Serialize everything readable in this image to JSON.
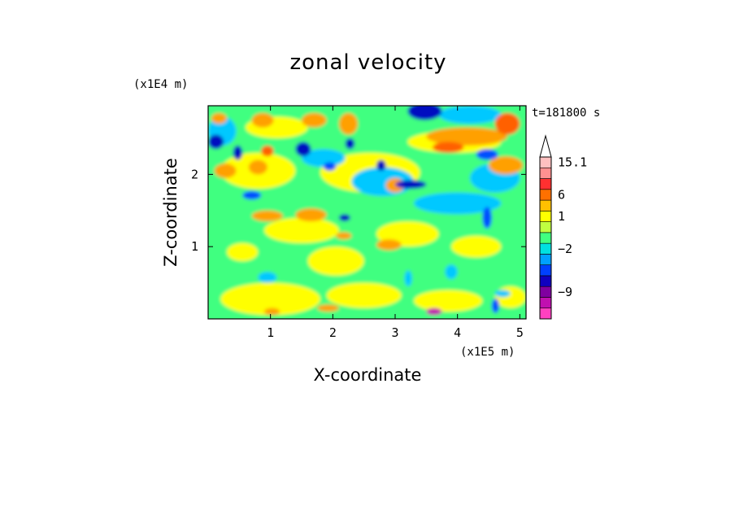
{
  "chart_data": {
    "type": "heatmap",
    "title": "zonal velocity",
    "xlabel": "X-coordinate",
    "ylabel": "Z-coordinate",
    "x_scale_label": "(x1E5 m)",
    "y_scale_label": "(x1E4 m)",
    "time_label": "t=181800 s",
    "xlim": [
      0,
      5.1
    ],
    "ylim": [
      0,
      2.95
    ],
    "x_ticks": [
      {
        "value": 1,
        "label": "1"
      },
      {
        "value": 2,
        "label": "2"
      },
      {
        "value": 3,
        "label": "3"
      },
      {
        "value": 4,
        "label": "4"
      },
      {
        "value": 5,
        "label": "5"
      }
    ],
    "y_ticks": [
      {
        "value": 1,
        "label": "1"
      },
      {
        "value": 2,
        "label": "2"
      }
    ],
    "colorbar": {
      "levels": [
        {
          "color": "#ff40c0"
        },
        {
          "color": "#c010b0"
        },
        {
          "color": "#8000a0"
        },
        {
          "color": "#1000c0"
        },
        {
          "color": "#0040ff"
        },
        {
          "color": "#00a0ff"
        },
        {
          "color": "#00e0e0"
        },
        {
          "color": "#40ff80"
        },
        {
          "color": "#c0ff40"
        },
        {
          "color": "#ffff00"
        },
        {
          "color": "#ffc000"
        },
        {
          "color": "#ff7000"
        },
        {
          "color": "#ff3030"
        },
        {
          "color": "#ff9090"
        },
        {
          "color": "#ffc0c0"
        }
      ],
      "extend_top": true,
      "labels": [
        {
          "text": "15.1",
          "level": 14
        },
        {
          "text": "6",
          "level": 11
        },
        {
          "text": "1",
          "level": 9
        },
        {
          "text": "−2",
          "level": 6
        },
        {
          "text": "−9",
          "level": 2
        }
      ]
    },
    "palette": {
      "deep_blue": "#0010c0",
      "blue": "#0050ff",
      "cyan": "#00c8ff",
      "green": "#40ff80",
      "yellow": "#ffff00",
      "orange": "#ffa000",
      "red_orange": "#ff6000",
      "magenta": "#c010b0"
    }
  }
}
